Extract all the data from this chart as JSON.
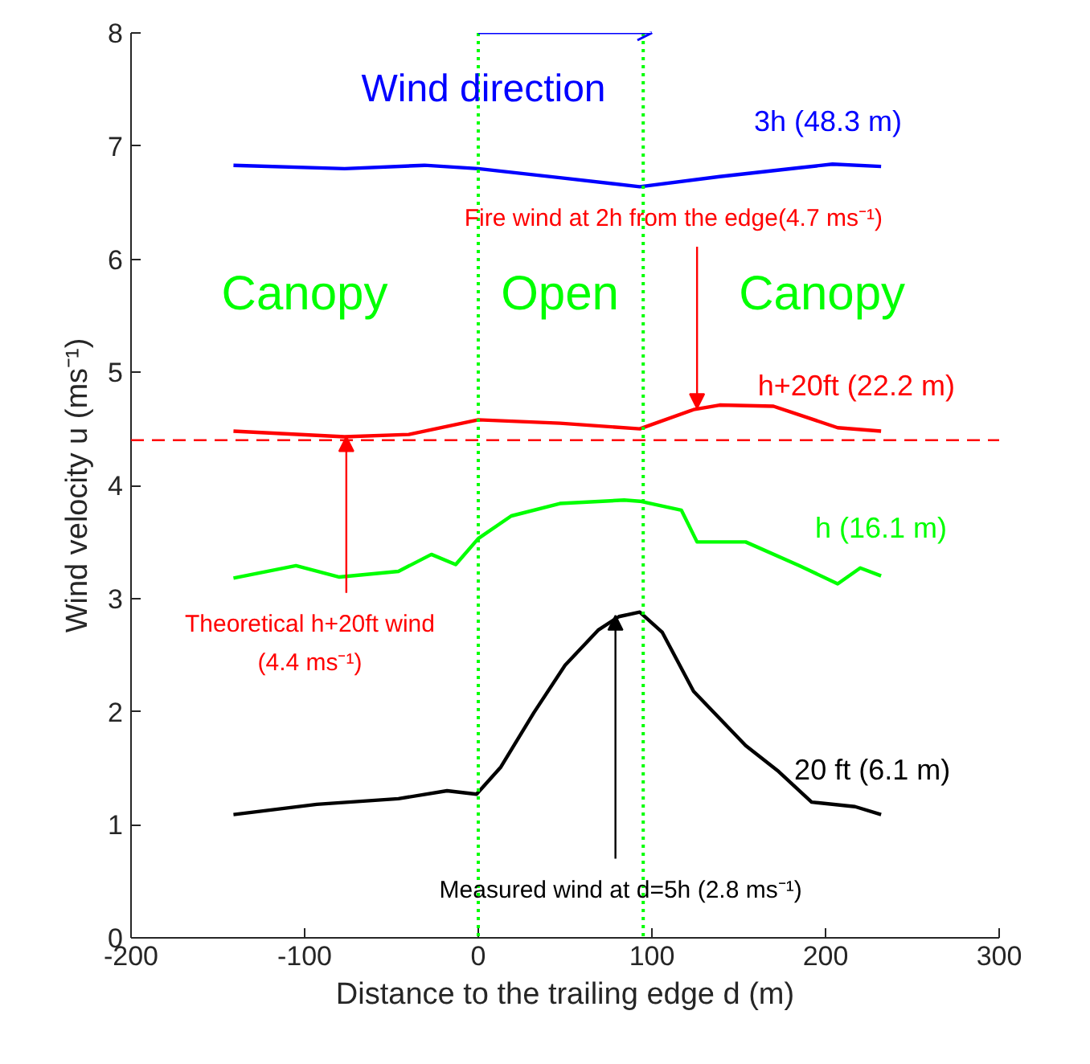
{
  "chart_data": {
    "type": "line",
    "xlabel": "Distance to the trailing edge d (m)",
    "ylabel": "Wind velocity u (ms⁻¹)",
    "xlim": [
      -200,
      300
    ],
    "ylim": [
      0,
      8
    ],
    "xticks": [
      -200,
      -100,
      0,
      100,
      200,
      300
    ],
    "yticks": [
      0,
      1,
      2,
      3,
      4,
      5,
      6,
      7,
      8
    ],
    "grid": false,
    "line_style": "solid",
    "marker": "none",
    "series": [
      {
        "name": "3h (48.3 m)",
        "color": "#0000ff",
        "x": [
          -141,
          -77,
          -31,
          0,
          47,
          93,
          139,
          186,
          204,
          232
        ],
        "values": [
          6.83,
          6.8,
          6.83,
          6.8,
          6.72,
          6.64,
          6.73,
          6.81,
          6.84,
          6.82
        ]
      },
      {
        "name": "h+20ft (22.2 m)",
        "color": "#ff0000",
        "x": [
          -141,
          -77,
          -40,
          0,
          47,
          93,
          124,
          139,
          170,
          207,
          232
        ],
        "values": [
          4.48,
          4.43,
          4.45,
          4.58,
          4.55,
          4.5,
          4.67,
          4.71,
          4.7,
          4.51,
          4.48
        ]
      },
      {
        "name": "h (16.1 m)",
        "color": "#00ff00",
        "x": [
          -141,
          -105,
          -80,
          -46,
          -27,
          -13,
          0,
          19,
          47,
          84,
          93,
          117,
          126,
          154,
          185,
          207,
          220,
          232
        ],
        "values": [
          3.18,
          3.29,
          3.19,
          3.24,
          3.39,
          3.3,
          3.53,
          3.73,
          3.84,
          3.87,
          3.86,
          3.78,
          3.5,
          3.5,
          3.29,
          3.13,
          3.27,
          3.2
        ]
      },
      {
        "name": "20 ft (6.1 m)",
        "color": "#000000",
        "x": [
          -141,
          -93,
          -46,
          -18,
          -1,
          13,
          32,
          50,
          69,
          81,
          93,
          106,
          124,
          154,
          173,
          192,
          217,
          232
        ],
        "values": [
          1.09,
          1.18,
          1.23,
          1.3,
          1.27,
          1.51,
          1.99,
          2.41,
          2.72,
          2.84,
          2.88,
          2.7,
          2.18,
          1.7,
          1.47,
          1.2,
          1.16,
          1.09
        ]
      }
    ],
    "ref_lines": [
      {
        "axis": "x",
        "value": 0,
        "color": "#00ff00",
        "line_style": "dotted"
      },
      {
        "axis": "x",
        "value": 95,
        "color": "#00ff00",
        "line_style": "dotted"
      },
      {
        "axis": "y",
        "value": 4.4,
        "color": "#ff0000",
        "line_style": "dashed"
      }
    ],
    "annotations": [
      "Wind direction",
      "Canopy",
      "Open",
      "Canopy",
      {
        "text": "Fire wind at 2h from the edge(4.7 ms⁻¹)",
        "x": 126,
        "y": 4.68
      },
      {
        "text": "Theoretical h+20ft wind\n(4.4 ms⁻¹)",
        "x": -76,
        "y": 4.43
      },
      {
        "text": "Measured wind at d=5h (2.8 ms⁻¹)",
        "x": 79,
        "y": 2.85
      }
    ]
  }
}
